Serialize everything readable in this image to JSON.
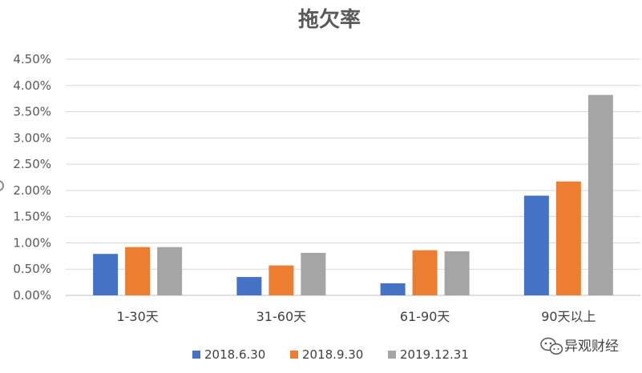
{
  "chart_data": {
    "type": "bar",
    "title": "拖欠率",
    "categories": [
      "1-30天",
      "31-60天",
      "61-90天",
      "90天以上"
    ],
    "series": [
      {
        "name": "2018.6.30",
        "color": "#4472C4",
        "values": [
          0.79,
          0.35,
          0.23,
          1.9
        ]
      },
      {
        "name": "2018.9.30",
        "color": "#ED7D31",
        "values": [
          0.92,
          0.57,
          0.86,
          2.17
        ]
      },
      {
        "name": "2019.12.31",
        "color": "#A5A5A5",
        "values": [
          0.92,
          0.81,
          0.84,
          3.82
        ]
      }
    ],
    "ylim": [
      0,
      4.5
    ],
    "yticks": [
      0,
      0.5,
      1.0,
      1.5,
      2.0,
      2.5,
      3.0,
      3.5,
      4.0,
      4.5
    ],
    "ytick_labels": [
      "0.00%",
      "0.50%",
      "1.00%",
      "1.50%",
      "2.00%",
      "2.50%",
      "3.00%",
      "3.50%",
      "4.00%",
      "4.50%"
    ],
    "y_unit": "%",
    "grid": true,
    "legend_position": "bottom"
  },
  "watermark": {
    "text": "异观财经",
    "icon": "wechat-icon"
  }
}
